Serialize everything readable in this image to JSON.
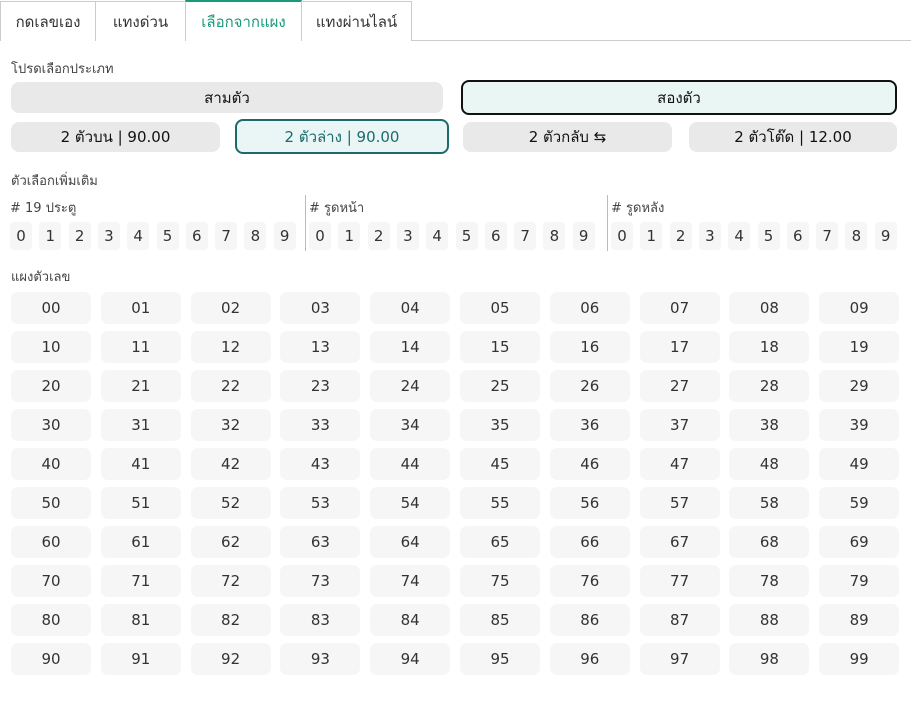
{
  "tabs": [
    {
      "label": "กดเลขเอง"
    },
    {
      "label": "แทงด่วน"
    },
    {
      "label": "เลือกจากแผง",
      "active": true
    },
    {
      "label": "แทงผ่านไลน์"
    }
  ],
  "type_label": "โปรดเลือกประเภท",
  "types": [
    {
      "label": "สามตัว"
    },
    {
      "label": "สองตัว",
      "selected": true
    }
  ],
  "subtypes": [
    {
      "label": "2 ตัวบน | 90.00"
    },
    {
      "label": "2 ตัวล่าง | 90.00",
      "selected": true
    },
    {
      "label": "2 ตัวกลับ ⇆"
    },
    {
      "label": "2 ตัวโต๊ด | 12.00"
    }
  ],
  "options_label": "ตัวเลือกเพิ่มเติม",
  "option_groups": [
    {
      "label": "# 19 ประตู"
    },
    {
      "label": "# รูดหน้า"
    },
    {
      "label": "# รูดหลัง"
    }
  ],
  "digits": [
    "0",
    "1",
    "2",
    "3",
    "4",
    "5",
    "6",
    "7",
    "8",
    "9"
  ],
  "board_label": "แผงตัวเลข",
  "accent": "#1a9a7a"
}
